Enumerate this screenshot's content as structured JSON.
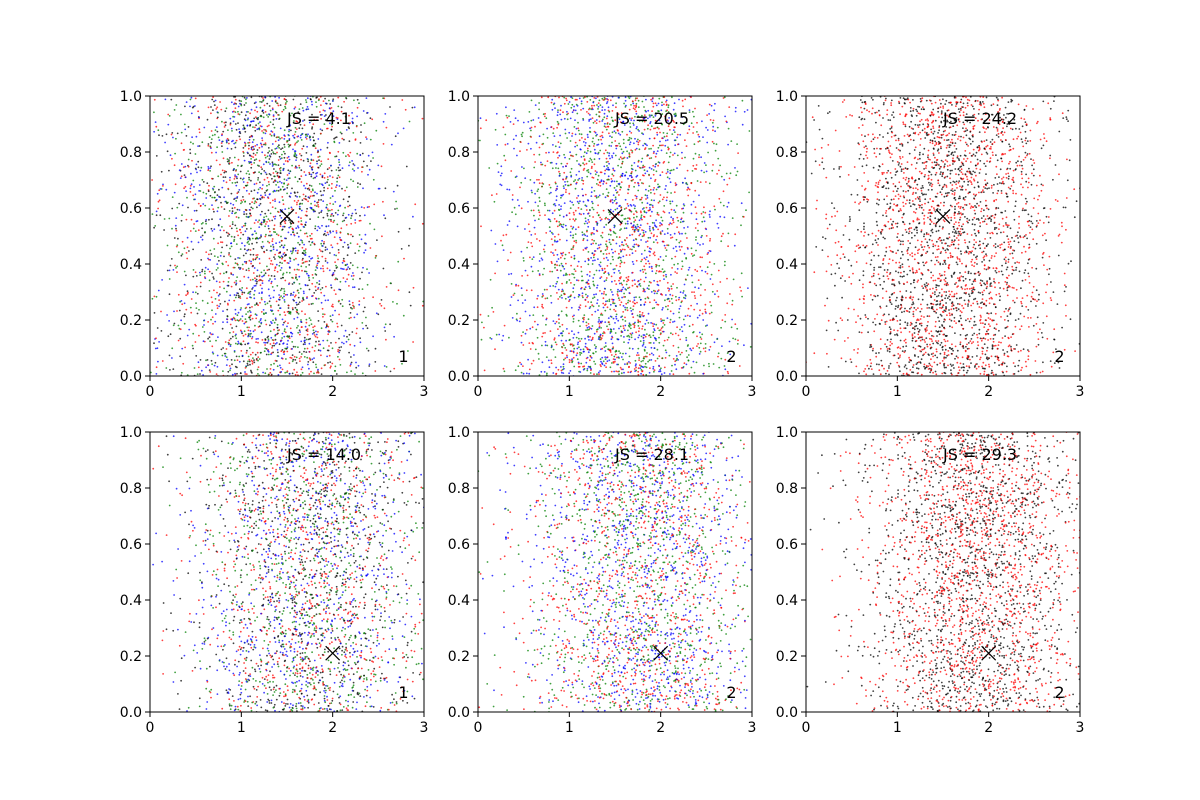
{
  "chart_data": [
    {
      "type": "scatter",
      "annotation": "JS = 4.1",
      "corner_label": "1",
      "marker": {
        "x": 1.5,
        "y": 0.57
      },
      "series_colors": [
        "#0000ff",
        "#ff0000",
        "#008000",
        "#000000"
      ],
      "x_center": 1.35,
      "x_spread": 0.62,
      "xlim": [
        0,
        3
      ],
      "ylim": [
        0,
        1
      ],
      "xticks": [
        "0",
        "1",
        "2",
        "3"
      ],
      "yticks": [
        "0.0",
        "0.2",
        "0.4",
        "0.6",
        "0.8",
        "1.0"
      ]
    },
    {
      "type": "scatter",
      "annotation": "JS = 20.5",
      "corner_label": "2",
      "marker": {
        "x": 1.5,
        "y": 0.57
      },
      "series_colors": [
        "#0000ff",
        "#ff0000",
        "#008000"
      ],
      "x_center": 1.55,
      "x_spread": 0.62,
      "xlim": [
        0,
        3
      ],
      "ylim": [
        0,
        1
      ],
      "xticks": [
        "0",
        "1",
        "2",
        "3"
      ],
      "yticks": [
        "0.0",
        "0.2",
        "0.4",
        "0.6",
        "0.8",
        "1.0"
      ]
    },
    {
      "type": "scatter",
      "annotation": "JS = 24.2",
      "corner_label": "2",
      "marker": {
        "x": 1.5,
        "y": 0.57
      },
      "series_colors": [
        "#ff0000",
        "#000000"
      ],
      "x_center": 1.55,
      "x_spread": 0.6,
      "xlim": [
        0,
        3
      ],
      "ylim": [
        0,
        1
      ],
      "xticks": [
        "0",
        "1",
        "2",
        "3"
      ],
      "yticks": [
        "0.0",
        "0.2",
        "0.4",
        "0.6",
        "0.8",
        "1.0"
      ]
    },
    {
      "type": "scatter",
      "annotation": "JS = 14.0",
      "corner_label": "1",
      "marker": {
        "x": 2.0,
        "y": 0.21
      },
      "series_colors": [
        "#0000ff",
        "#ff0000",
        "#008000",
        "#000000"
      ],
      "x_center": 1.75,
      "x_spread": 0.65,
      "xlim": [
        0,
        3
      ],
      "ylim": [
        0,
        1
      ],
      "xticks": [
        "0",
        "1",
        "2",
        "3"
      ],
      "yticks": [
        "0.0",
        "0.2",
        "0.4",
        "0.6",
        "0.8",
        "1.0"
      ]
    },
    {
      "type": "scatter",
      "annotation": "JS = 28.1",
      "corner_label": "2",
      "marker": {
        "x": 2.0,
        "y": 0.21
      },
      "series_colors": [
        "#0000ff",
        "#ff0000",
        "#008000"
      ],
      "x_center": 1.75,
      "x_spread": 0.62,
      "xlim": [
        0,
        3
      ],
      "ylim": [
        0,
        1
      ],
      "xticks": [
        "0",
        "1",
        "2",
        "3"
      ],
      "yticks": [
        "0.0",
        "0.2",
        "0.4",
        "0.6",
        "0.8",
        "1.0"
      ]
    },
    {
      "type": "scatter",
      "annotation": "JS = 29.3",
      "corner_label": "2",
      "marker": {
        "x": 2.0,
        "y": 0.21
      },
      "series_colors": [
        "#ff0000",
        "#000000"
      ],
      "x_center": 1.85,
      "x_spread": 0.6,
      "xlim": [
        0,
        3
      ],
      "ylim": [
        0,
        1
      ],
      "xticks": [
        "0",
        "1",
        "2",
        "3"
      ],
      "yticks": [
        "0.0",
        "0.2",
        "0.4",
        "0.6",
        "0.8",
        "1.0"
      ]
    }
  ]
}
